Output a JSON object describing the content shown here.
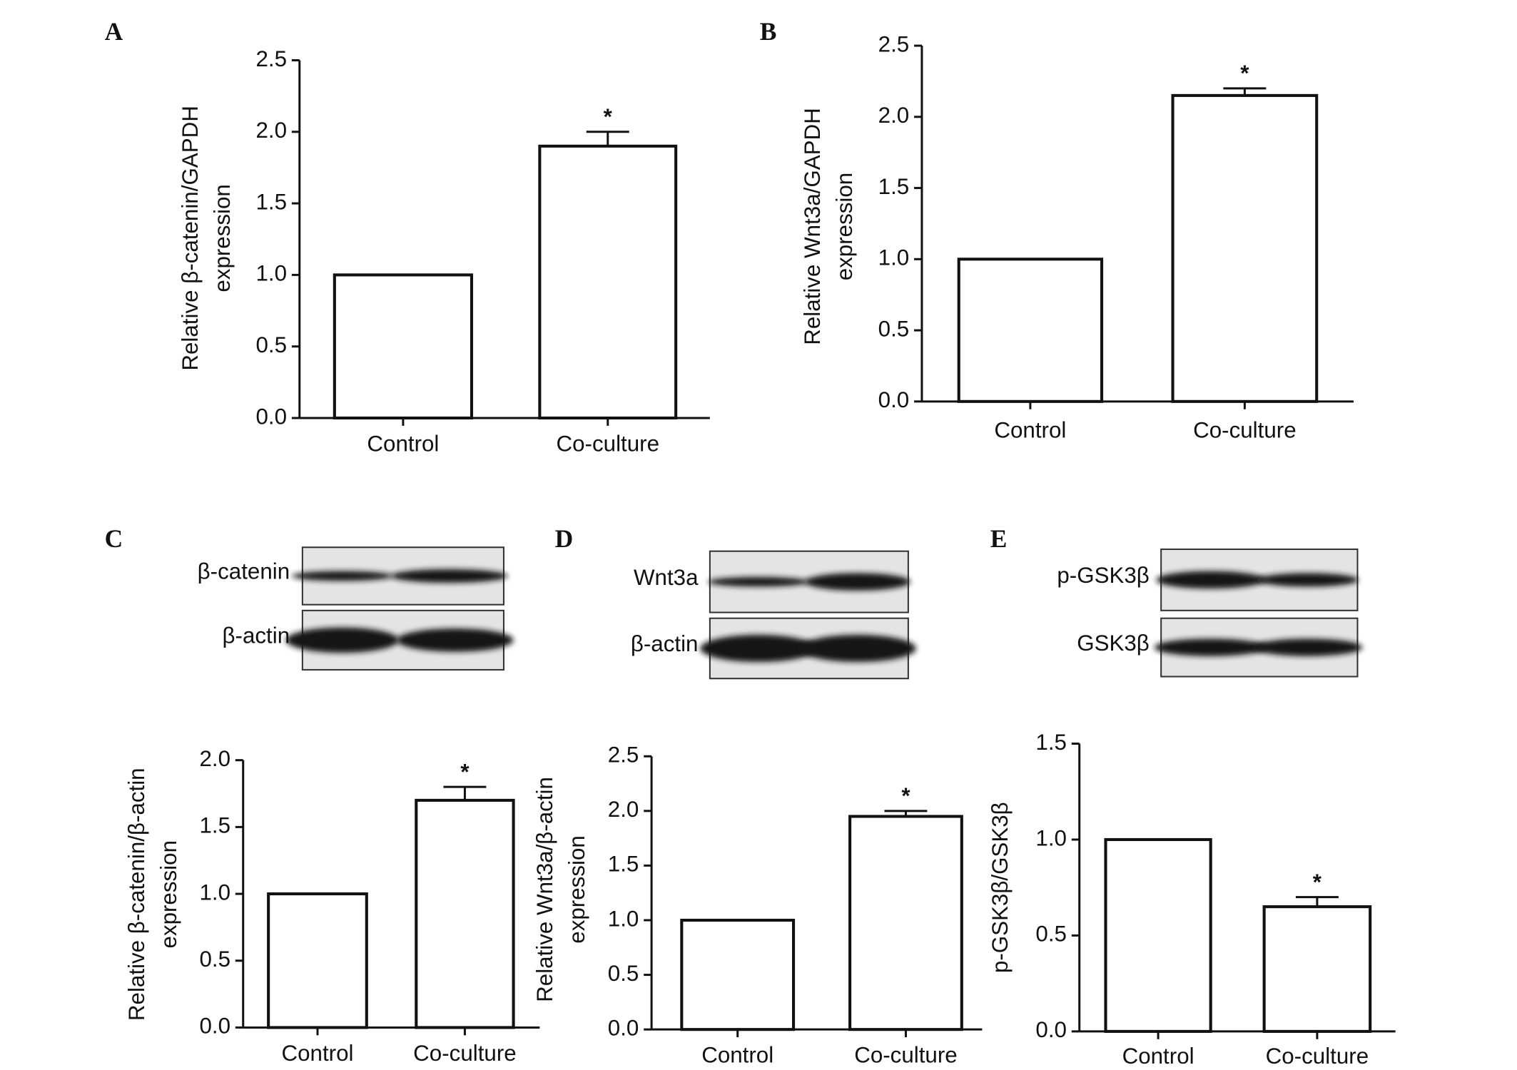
{
  "chart_data": [
    {
      "type": "bar",
      "panel": "A",
      "ylabel": [
        "Relative β-catenin/GAPDH",
        "expression"
      ],
      "categories": [
        "Control",
        "Co-culture"
      ],
      "values": [
        1.0,
        1.9
      ],
      "errors": [
        null,
        0.1
      ],
      "significance": [
        null,
        "*"
      ],
      "ylim": [
        0,
        2.5
      ],
      "yticks": [
        {
          "value": 0,
          "label": "0.0"
        },
        0.5,
        {
          "value": 1,
          "label": "1.0"
        },
        1.5,
        {
          "value": 2,
          "label": "2.0"
        },
        2.5
      ],
      "color": "#ffffff"
    },
    {
      "type": "bar",
      "panel": "B",
      "ylabel": [
        "Relative Wnt3a/GAPDH",
        "expression"
      ],
      "categories": [
        "Control",
        "Co-culture"
      ],
      "values": [
        1.0,
        2.15
      ],
      "errors": [
        null,
        0.05
      ],
      "significance": [
        null,
        "*"
      ],
      "ylim": [
        0,
        2.5
      ],
      "yticks": [
        {
          "value": 0,
          "label": "0.0"
        },
        0.5,
        {
          "value": 1,
          "label": "1.0"
        },
        1.5,
        {
          "value": 2,
          "label": "2.0"
        },
        2.5
      ],
      "color": "#ffffff"
    },
    {
      "type": "bar",
      "panel": "C",
      "blot_rows": [
        "β-catenin",
        "β-actin"
      ],
      "ylabel": [
        "Relative β-catenin/β-actin",
        "expression"
      ],
      "categories": [
        "Control",
        "Co-culture"
      ],
      "values": [
        1.0,
        1.7
      ],
      "errors": [
        null,
        0.1
      ],
      "significance": [
        null,
        "*"
      ],
      "ylim": [
        0,
        2.0
      ],
      "yticks": [
        {
          "value": 0,
          "label": "0.0"
        },
        0.5,
        {
          "value": 1,
          "label": "1.0"
        },
        1.5,
        {
          "value": 2,
          "label": "2.0"
        }
      ],
      "color": "#ffffff"
    },
    {
      "type": "bar",
      "panel": "D",
      "blot_rows": [
        "Wnt3a",
        "β-actin"
      ],
      "ylabel": [
        "Relative Wnt3a/β-actin",
        "expression"
      ],
      "categories": [
        "Control",
        "Co-culture"
      ],
      "values": [
        1.0,
        1.95
      ],
      "errors": [
        null,
        0.05
      ],
      "significance": [
        null,
        "*"
      ],
      "ylim": [
        0,
        2.5
      ],
      "yticks": [
        {
          "value": 0,
          "label": "0.0"
        },
        0.5,
        {
          "value": 1,
          "label": "1.0"
        },
        1.5,
        {
          "value": 2,
          "label": "2.0"
        },
        2.5
      ],
      "color": "#ffffff"
    },
    {
      "type": "bar",
      "panel": "E",
      "blot_rows": [
        "p-GSK3β",
        "GSK3β"
      ],
      "ylabel": [
        "p-GSK3β/GSK3β"
      ],
      "categories": [
        "Control",
        "Co-culture"
      ],
      "values": [
        1.0,
        0.65
      ],
      "errors": [
        null,
        0.05
      ],
      "significance": [
        null,
        "*"
      ],
      "ylim": [
        0,
        1.5
      ],
      "yticks": [
        {
          "value": 0,
          "label": "0.0"
        },
        0.5,
        {
          "value": 1,
          "label": "1.0"
        },
        1.5
      ],
      "color": "#ffffff"
    }
  ]
}
